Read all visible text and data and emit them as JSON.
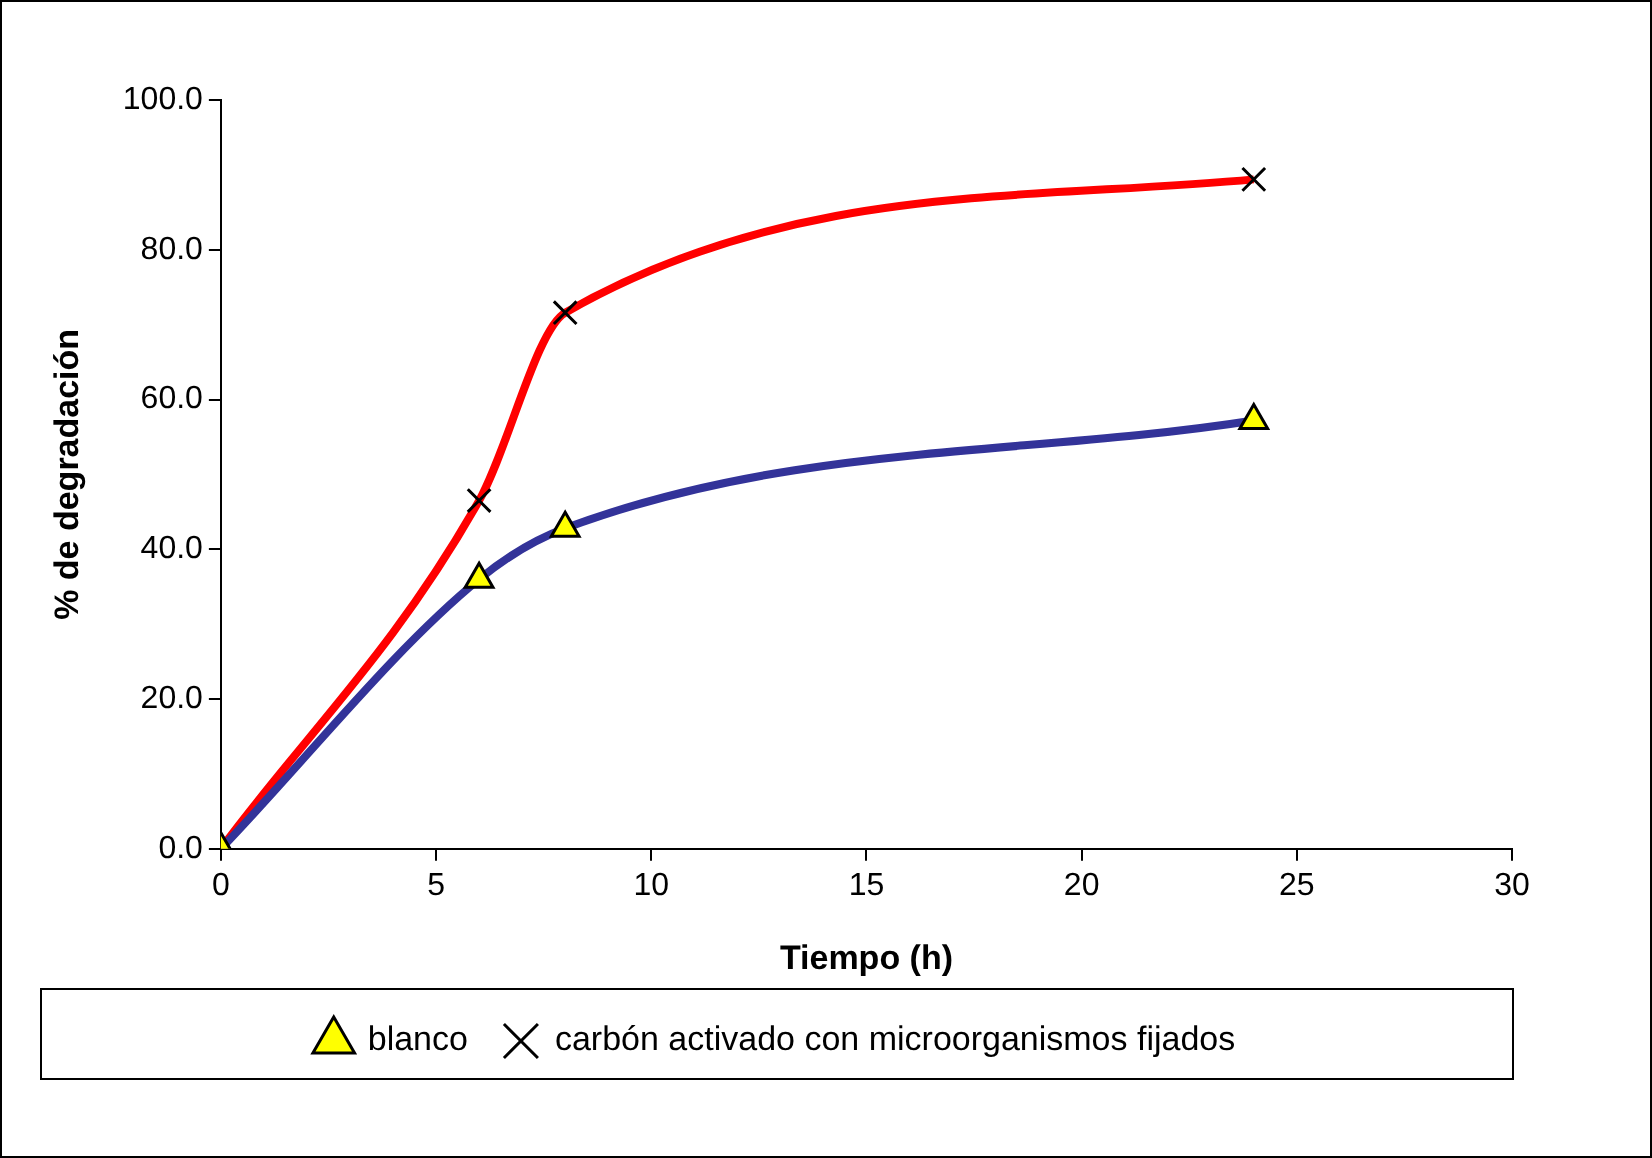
{
  "chart_data": {
    "type": "line",
    "xlabel": "Tiempo (h)",
    "ylabel": "% de degradación",
    "x": [
      0,
      6,
      8,
      24
    ],
    "series": [
      {
        "name": "blanco",
        "color": "#333399",
        "marker": "triangle",
        "values": [
          0,
          36.0,
          42.8,
          57.2
        ]
      },
      {
        "name": "carbón activado con microorganismos fijados",
        "color": "#ff0000",
        "marker": "cross",
        "values": [
          0,
          46.5,
          71.6,
          89.4
        ]
      }
    ],
    "xlim": [
      0,
      30
    ],
    "xticks": [
      0,
      5,
      10,
      15,
      20,
      25,
      30
    ],
    "ylim": [
      0,
      100
    ],
    "yticks": [
      {
        "value": 0,
        "label": "0.0"
      },
      {
        "value": 20,
        "label": "20.0"
      },
      {
        "value": 40,
        "label": "40.0"
      },
      {
        "value": 60,
        "label": "60.0"
      },
      {
        "value": 80,
        "label": "80.0"
      },
      {
        "value": 100,
        "label": "100.0"
      }
    ],
    "grid": false,
    "legend": "bottom"
  }
}
